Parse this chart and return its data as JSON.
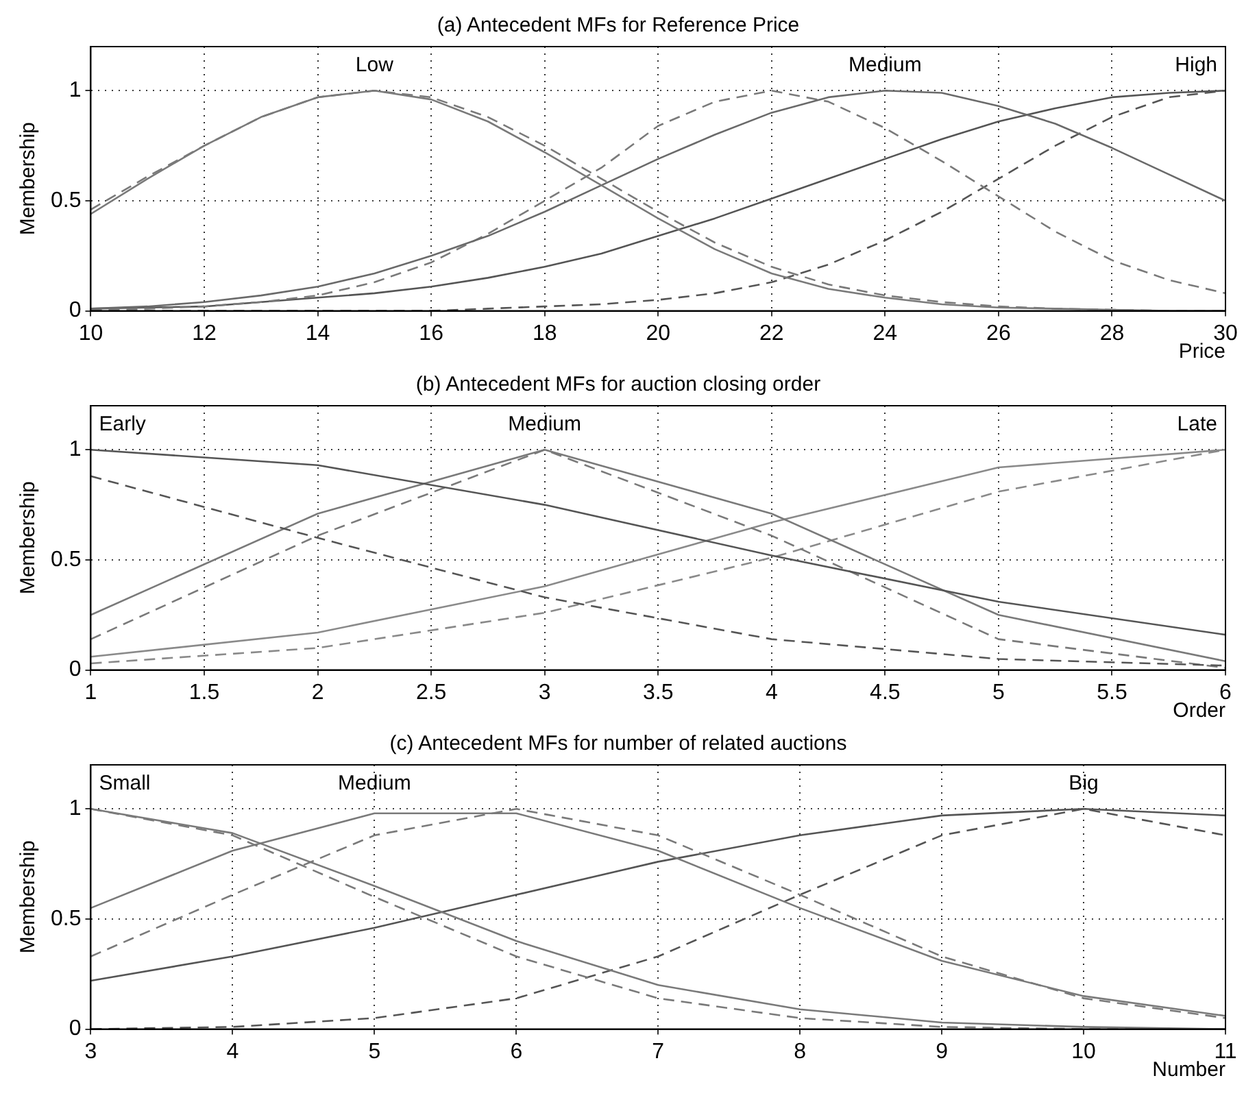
{
  "chart_data": [
    {
      "type": "line",
      "title": "(a) Antecedent MFs for Reference Price",
      "xlabel": "Price",
      "ylabel": "Membership",
      "x": [
        10,
        11,
        12,
        13,
        14,
        15,
        16,
        17,
        18,
        19,
        20,
        21,
        22,
        23,
        24,
        25,
        26,
        27,
        28,
        29,
        30
      ],
      "xlim": [
        10,
        30
      ],
      "xticks": [
        10,
        12,
        14,
        16,
        18,
        20,
        22,
        24,
        26,
        28,
        30
      ],
      "ylim": [
        0,
        1.2
      ],
      "yticks": [
        0,
        0.5,
        1
      ],
      "grid": true,
      "marker": "none",
      "series": [
        {
          "name": "Low",
          "color": "#7a7a7a",
          "line_style": "solid",
          "values": [
            0.44,
            0.6,
            0.75,
            0.88,
            0.97,
            1.0,
            0.96,
            0.86,
            0.72,
            0.57,
            0.42,
            0.28,
            0.17,
            0.1,
            0.06,
            0.03,
            0.015,
            0.01,
            0.005,
            0,
            0
          ]
        },
        {
          "color": "#7a7a7a",
          "line_style": "dashed",
          "values": [
            0.46,
            0.61,
            0.75,
            0.88,
            0.97,
            1.0,
            0.97,
            0.88,
            0.75,
            0.6,
            0.45,
            0.31,
            0.2,
            0.12,
            0.07,
            0.04,
            0.02,
            0.01,
            0.005,
            0,
            0
          ]
        },
        {
          "name": "Medium",
          "color": "#6a6a6a",
          "line_style": "solid",
          "values": [
            0.01,
            0.02,
            0.04,
            0.07,
            0.11,
            0.17,
            0.25,
            0.34,
            0.45,
            0.57,
            0.69,
            0.8,
            0.9,
            0.97,
            1.0,
            0.99,
            0.93,
            0.85,
            0.74,
            0.62,
            0.5
          ]
        },
        {
          "color": "#7a7a7a",
          "line_style": "dashed",
          "values": [
            0.005,
            0.01,
            0.02,
            0.04,
            0.07,
            0.13,
            0.22,
            0.35,
            0.5,
            0.65,
            0.84,
            0.95,
            1.0,
            0.95,
            0.83,
            0.68,
            0.52,
            0.36,
            0.23,
            0.14,
            0.08
          ]
        },
        {
          "name": "High",
          "color": "#555555",
          "line_style": "solid",
          "values": [
            0.01,
            0.015,
            0.02,
            0.04,
            0.06,
            0.08,
            0.11,
            0.15,
            0.2,
            0.26,
            0.34,
            0.42,
            0.51,
            0.6,
            0.69,
            0.78,
            0.86,
            0.92,
            0.97,
            0.99,
            1.0
          ]
        },
        {
          "color": "#555555",
          "line_style": "dashed",
          "values": [
            0,
            0,
            0,
            0,
            0,
            0,
            0,
            0.01,
            0.02,
            0.03,
            0.05,
            0.08,
            0.13,
            0.21,
            0.32,
            0.45,
            0.6,
            0.75,
            0.88,
            0.97,
            1.0
          ]
        }
      ]
    },
    {
      "type": "line",
      "title": "(b) Antecedent MFs for auction closing order",
      "xlabel": "Order",
      "ylabel": "Membership",
      "x": [
        1,
        2,
        3,
        4,
        5,
        6
      ],
      "xlim": [
        1,
        6
      ],
      "xticks": [
        1,
        1.5,
        2,
        2.5,
        3,
        3.5,
        4,
        4.5,
        5,
        5.5,
        6
      ],
      "ylim": [
        0,
        1.2
      ],
      "yticks": [
        0,
        0.5,
        1
      ],
      "grid": true,
      "marker": "none",
      "series": [
        {
          "name": "Early",
          "color": "#555555",
          "line_style": "solid",
          "values": [
            1,
            0.93,
            0.75,
            0.52,
            0.31,
            0.16
          ]
        },
        {
          "color": "#555555",
          "line_style": "dashed",
          "values": [
            0.88,
            0.6,
            0.33,
            0.14,
            0.05,
            0.02
          ]
        },
        {
          "name": "Medium",
          "color": "#7a7a7a",
          "line_style": "solid",
          "values": [
            0.25,
            0.71,
            1,
            0.71,
            0.25,
            0.04
          ]
        },
        {
          "color": "#7a7a7a",
          "line_style": "dashed",
          "values": [
            0.14,
            0.61,
            1,
            0.61,
            0.14,
            0.01
          ]
        },
        {
          "name": "Late",
          "color": "#8a8a8a",
          "line_style": "solid",
          "values": [
            0.06,
            0.17,
            0.38,
            0.67,
            0.92,
            1
          ]
        },
        {
          "color": "#8a8a8a",
          "line_style": "dashed",
          "values": [
            0.03,
            0.1,
            0.26,
            0.51,
            0.81,
            1
          ]
        }
      ]
    },
    {
      "type": "line",
      "title": "(c) Antecedent MFs for number of related auctions",
      "xlabel": "Number",
      "ylabel": "Membership",
      "x": [
        3,
        4,
        5,
        6,
        7,
        8,
        9,
        10,
        11
      ],
      "xlim": [
        3,
        11
      ],
      "xticks": [
        3,
        4,
        5,
        6,
        7,
        8,
        9,
        10,
        11
      ],
      "ylim": [
        0,
        1.2
      ],
      "yticks": [
        0,
        0.5,
        1
      ],
      "grid": true,
      "marker": "none",
      "series": [
        {
          "name": "Small",
          "color": "#7a7a7a",
          "line_style": "solid",
          "values": [
            1,
            0.89,
            0.65,
            0.4,
            0.2,
            0.09,
            0.03,
            0.01,
            0
          ]
        },
        {
          "color": "#7a7a7a",
          "line_style": "dashed",
          "values": [
            1,
            0.88,
            0.6,
            0.33,
            0.14,
            0.05,
            0.01,
            0,
            0
          ]
        },
        {
          "name": "Medium",
          "color": "#7a7a7a",
          "line_style": "solid",
          "values": [
            0.55,
            0.81,
            0.98,
            0.98,
            0.81,
            0.55,
            0.31,
            0.15,
            0.06
          ]
        },
        {
          "color": "#7a7a7a",
          "line_style": "dashed",
          "values": [
            0.33,
            0.61,
            0.88,
            1,
            0.88,
            0.61,
            0.33,
            0.14,
            0.05
          ]
        },
        {
          "name": "Big",
          "color": "#555555",
          "line_style": "solid",
          "values": [
            0.22,
            0.33,
            0.46,
            0.61,
            0.76,
            0.88,
            0.97,
            1,
            0.97
          ]
        },
        {
          "color": "#555555",
          "line_style": "dashed",
          "values": [
            0,
            0.01,
            0.05,
            0.14,
            0.33,
            0.61,
            0.88,
            1,
            0.88
          ]
        }
      ]
    }
  ]
}
